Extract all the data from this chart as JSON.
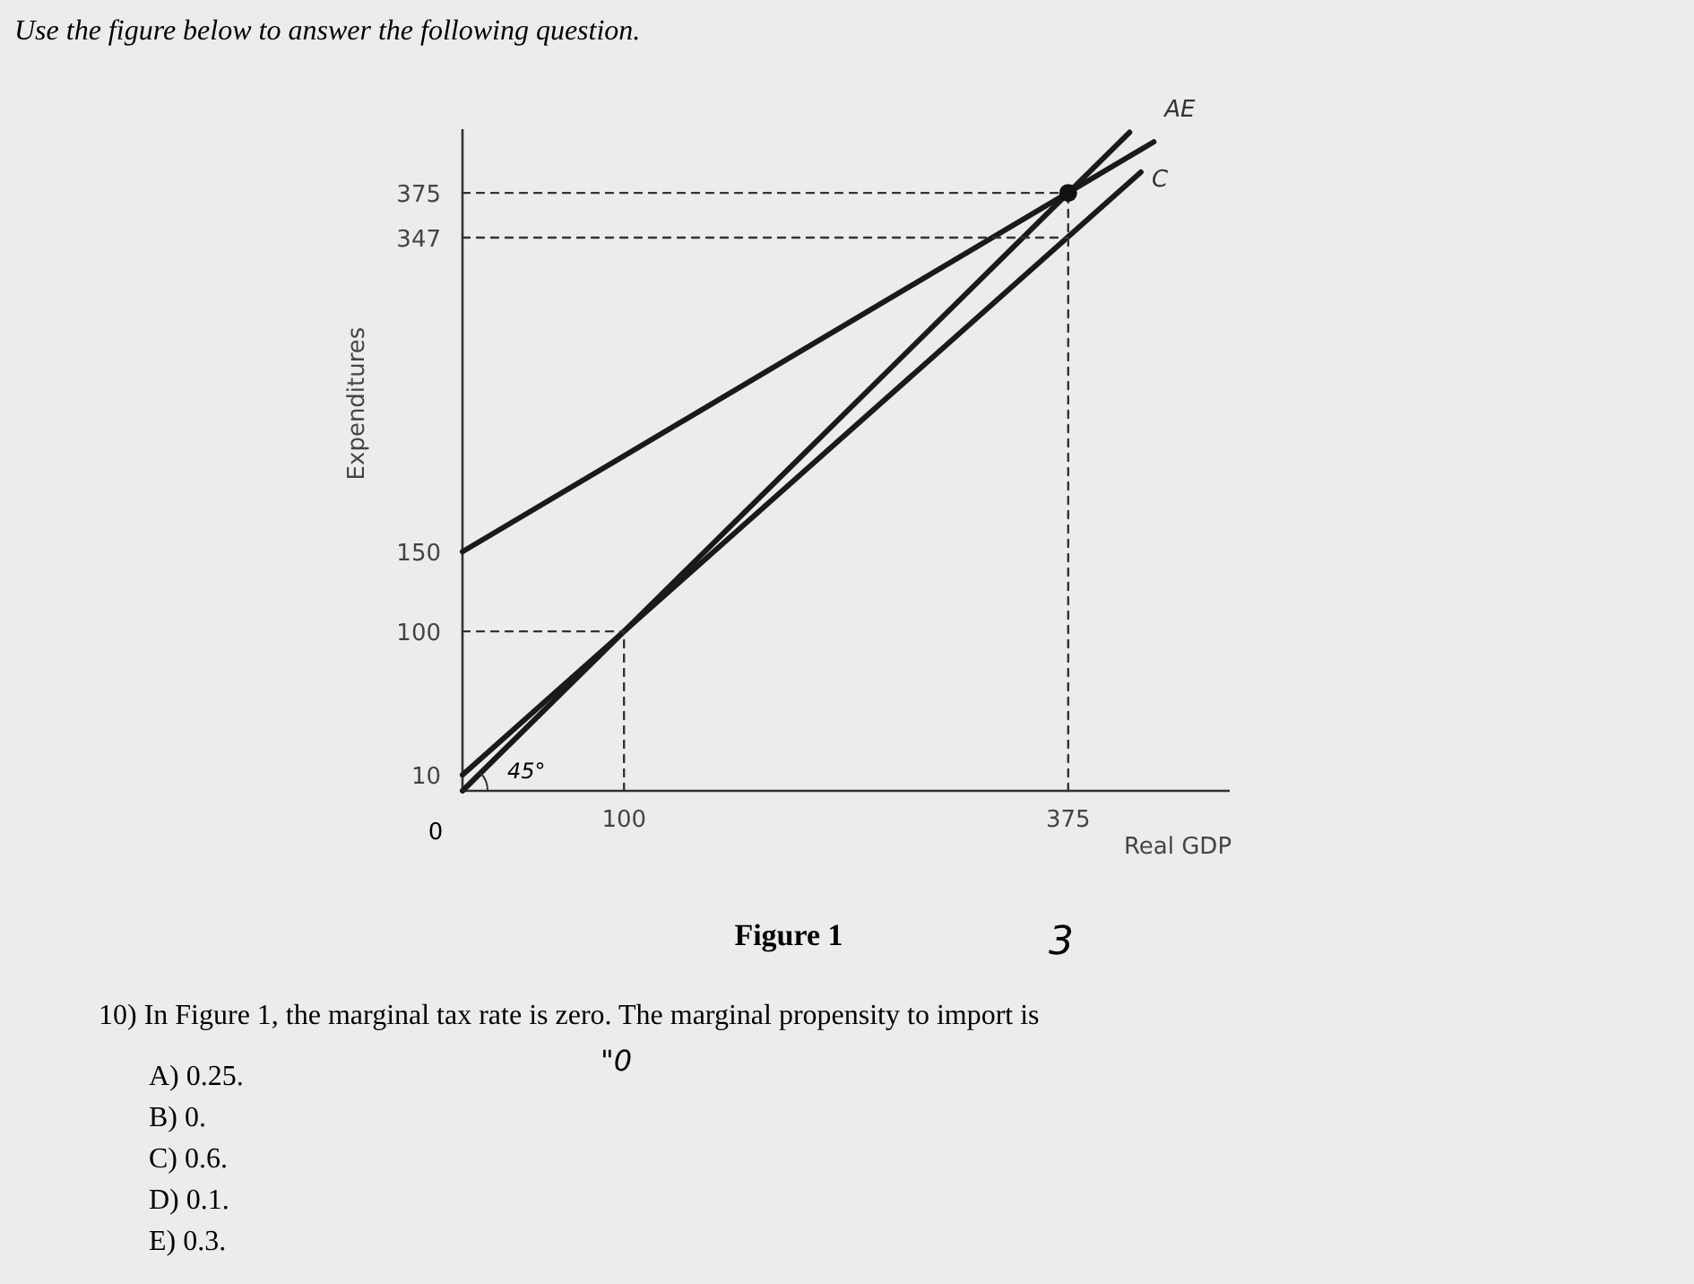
{
  "chart_data": {
    "type": "line",
    "title": "Use the figure below to answer the following question.",
    "xlabel": "Real GDP",
    "ylabel": "Expenditures",
    "xlim": [
      0,
      475
    ],
    "ylim": [
      0,
      415
    ],
    "xticks": [
      100,
      375
    ],
    "yticks": [
      10,
      100,
      150,
      347,
      375
    ],
    "grid": false,
    "series": [
      {
        "name": "AE",
        "color": "#1a1a1a",
        "x": [
          0,
          428
        ],
        "values": [
          150,
          407
        ],
        "line_style": "solid",
        "marker": "none"
      },
      {
        "name": "C",
        "color": "#1a1a1a",
        "x": [
          0,
          420
        ],
        "values": [
          10,
          388
        ],
        "line_style": "solid",
        "marker": "none"
      },
      {
        "color": "#1a1a1a",
        "x": [
          0,
          413
        ],
        "values": [
          0,
          413
        ],
        "line_style": "solid",
        "marker": "none"
      },
      {
        "color": "#333333",
        "x": [
          0,
          375
        ],
        "values": [
          375,
          375
        ],
        "line_style": "dashed",
        "marker": "none"
      },
      {
        "color": "#333333",
        "x": [
          0,
          375
        ],
        "values": [
          347,
          347
        ],
        "line_style": "dashed",
        "marker": "none"
      },
      {
        "color": "#333333",
        "x": [
          0,
          100
        ],
        "values": [
          100,
          100
        ],
        "line_style": "dashed",
        "marker": "none"
      },
      {
        "color": "#333333",
        "x": [
          100,
          100
        ],
        "values": [
          0,
          100
        ],
        "line_style": "dashed",
        "marker": "none"
      },
      {
        "color": "#333333",
        "x": [
          375,
          375
        ],
        "values": [
          0,
          375
        ],
        "line_style": "dashed",
        "marker": "none"
      },
      {
        "type": "scatter",
        "color": "#111111",
        "x": [
          375
        ],
        "values": [
          375
        ],
        "marker": "circle"
      }
    ],
    "annotations": [
      "0",
      "45°",
      "Figure 1",
      "3",
      "10) In Figure 1, the marginal tax rate is zero. The marginal propensity to import is",
      "\"0",
      "A) 0.25.",
      "B) 0.",
      "C) 0.6.",
      "D) 0.1.",
      "E) 0.3."
    ]
  }
}
